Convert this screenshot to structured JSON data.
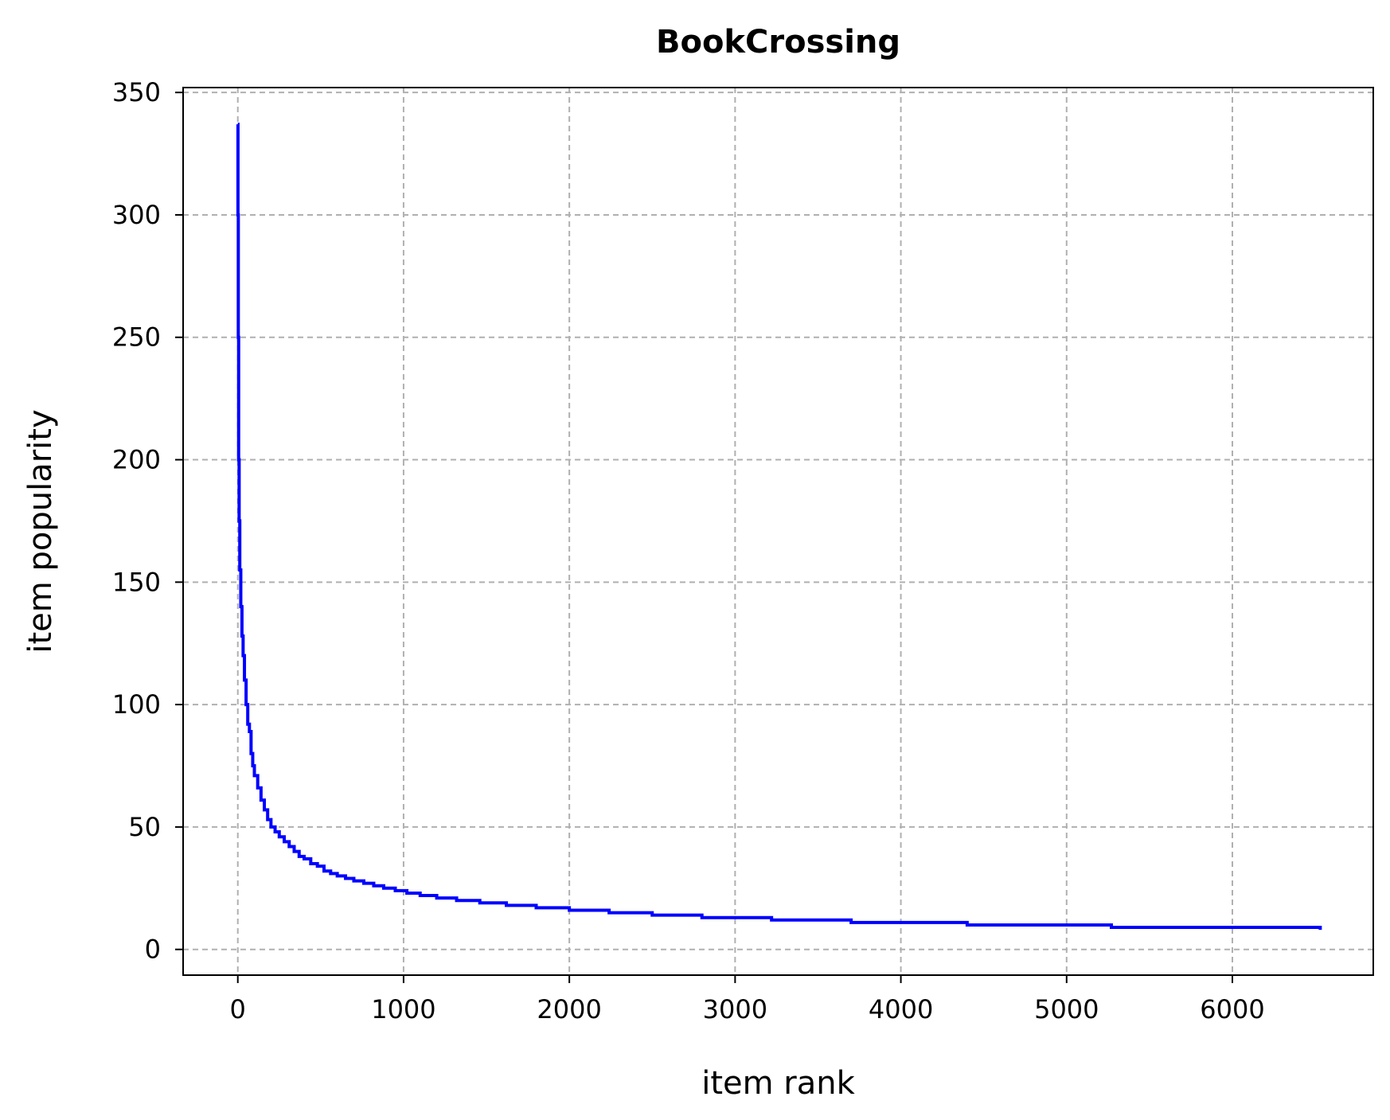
{
  "chart_data": {
    "type": "line",
    "title": "BookCrossing",
    "xlabel": "item rank",
    "ylabel": "item popularity",
    "xlim": [
      -330,
      6850
    ],
    "ylim": [
      -10.5,
      352
    ],
    "xticks": [
      0,
      1000,
      2000,
      3000,
      4000,
      5000,
      6000
    ],
    "yticks": [
      0,
      50,
      100,
      150,
      200,
      250,
      300,
      350
    ],
    "grid": true,
    "legend": "none",
    "series": [
      {
        "color": "#0000ff",
        "x": [
          0,
          1,
          3,
          5,
          8,
          12,
          18,
          25,
          32,
          40,
          50,
          60,
          70,
          80,
          90,
          100,
          120,
          140,
          160,
          180,
          200,
          225,
          250,
          280,
          310,
          340,
          370,
          400,
          440,
          480,
          520,
          560,
          600,
          650,
          700,
          760,
          820,
          880,
          950,
          1020,
          1100,
          1200,
          1320,
          1460,
          1620,
          1800,
          2000,
          2240,
          2500,
          2800,
          3220,
          3700,
          4400,
          5270,
          6530
        ],
        "y": [
          337,
          300,
          250,
          200,
          175,
          155,
          140,
          128,
          120,
          110,
          100,
          92,
          89,
          80,
          75,
          71,
          66,
          61,
          57,
          53,
          50,
          48,
          46,
          44,
          42,
          40,
          38,
          37,
          35,
          34,
          32,
          31,
          30,
          29,
          28,
          27,
          26,
          25,
          24,
          23,
          22,
          21,
          20,
          19,
          18,
          17,
          16,
          15,
          14,
          13,
          12,
          11,
          10,
          9,
          8
        ]
      }
    ]
  }
}
